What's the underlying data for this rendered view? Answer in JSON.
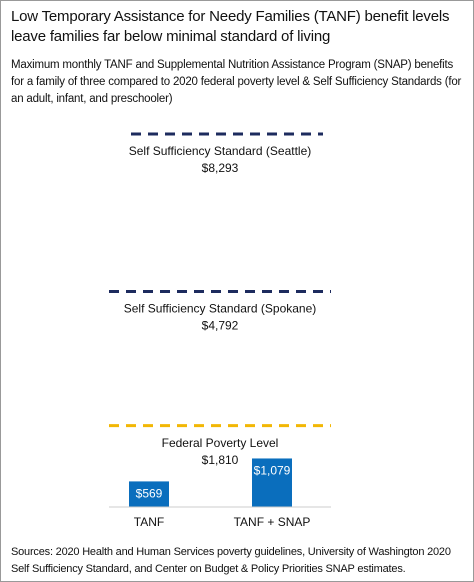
{
  "chart_data": {
    "type": "bar",
    "title": "Low Temporary Assistance for Needy Families (TANF) benefit levels leave families far below minimal standard of living",
    "subtitle": "Maximum monthly TANF and Supplemental Nutrition Assistance Program (SNAP) benefits for a family of three compared to 2020 federal poverty level & Self Sufficiency Standards (for an adult, infant, and preschooler)",
    "categories": [
      "TANF",
      "TANF + SNAP"
    ],
    "values": [
      569,
      1079
    ],
    "value_labels": [
      "$569",
      "$1,079"
    ],
    "color": "#0a6ebd",
    "reference_lines": [
      {
        "name": "Self Sufficiency Standard (Seattle)",
        "value": 8293,
        "label": "$8,293",
        "color": "#1d2b5e"
      },
      {
        "name": "Self Sufficiency Standard (Spokane)",
        "value": 4792,
        "label": "$4,792",
        "color": "#1d2b5e"
      },
      {
        "name": "Federal Poverty Level",
        "value": 1810,
        "label": "$1,810",
        "color": "#f2b705"
      }
    ],
    "source": "Sources: 2020 Health and Human Services poverty guidelines, University of Washington 2020 Self Sufficiency Standard, and Center on Budget & Policy Priorities SNAP estimates."
  }
}
